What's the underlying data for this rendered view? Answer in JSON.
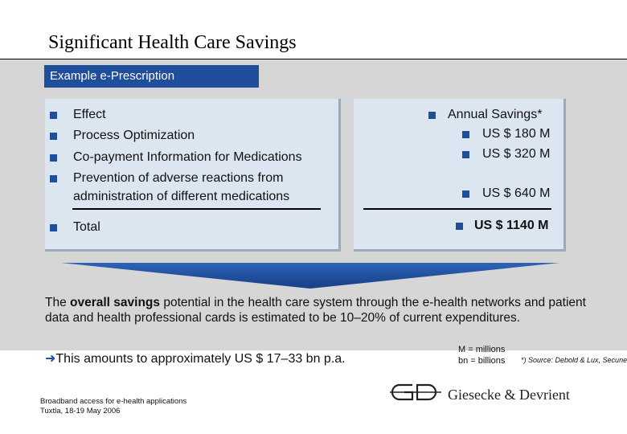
{
  "title": "Significant Health Care Savings",
  "tab_label": "Example e-Prescription",
  "left": {
    "items": [
      {
        "text": "Effect"
      },
      {
        "text": "Process Optimization"
      },
      {
        "text": "Co-payment Information for Medications"
      },
      {
        "text_line1": "Prevention of adverse reactions from",
        "text_line2": "administration of different medications"
      }
    ],
    "total_label": "Total"
  },
  "right": {
    "header": "Annual Savings*",
    "values": [
      "US $ 180 M",
      "US $ 320 M",
      "US $ 640 M"
    ],
    "total_value": "US $ 1140 M"
  },
  "paragraph": {
    "part1": "The ",
    "bold": "overall savings",
    "part2": " potential in the health care system through the e-health networks and patient data and health professional cards is estimated to be 10–20% of current expenditures."
  },
  "conclusion": {
    "arrow": "è",
    "text": "This amounts to approximately US $ 17–33 bn p.a."
  },
  "legend": {
    "line1": "M = millions",
    "line2": "bn = billions"
  },
  "source": "*) Source: Debold & Lux, Secunet",
  "footer": {
    "line1": "Broadband access for e-health applications",
    "line2": "Tuxtla, 18-19 May 2006"
  },
  "brand": "Giesecke & Devrient",
  "colors": {
    "accent": "#1f4e9c",
    "panel": "#d6d6d6",
    "box": "#dbe6f1"
  }
}
